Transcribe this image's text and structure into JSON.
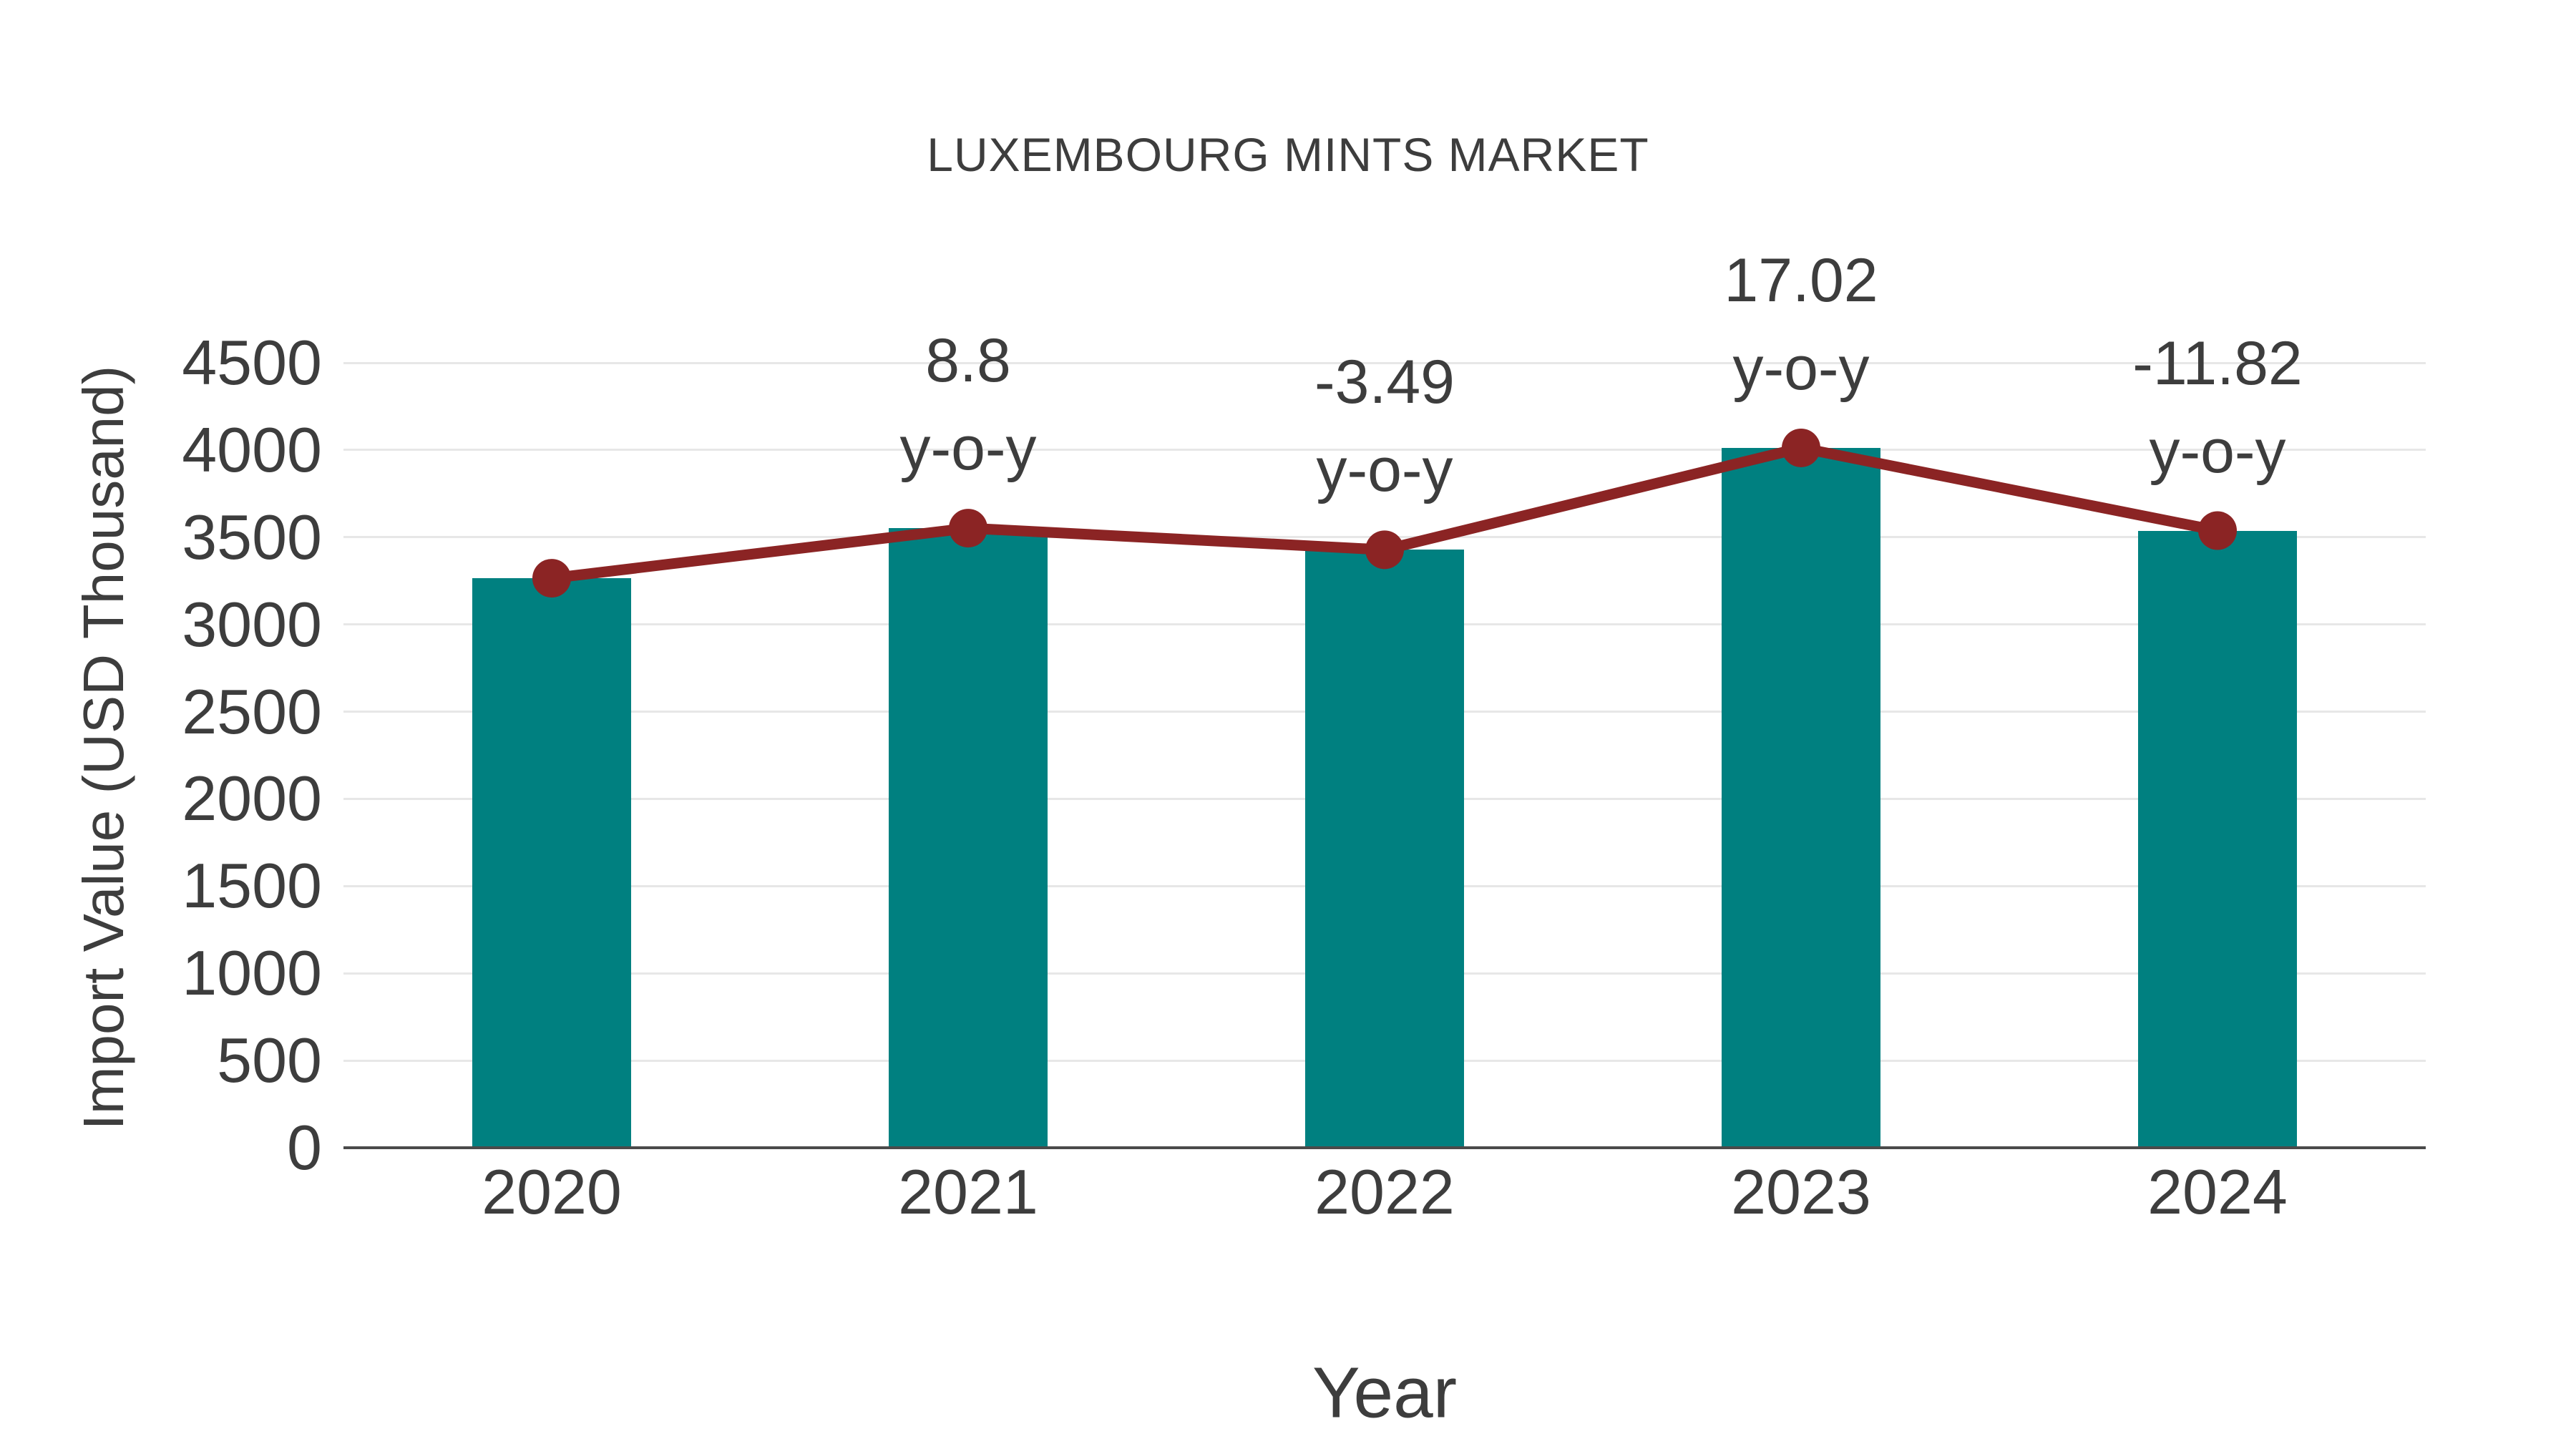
{
  "title": "LUXEMBOURG MINTS MARKET",
  "chart_data": {
    "type": "bar",
    "title": "LUXEMBOURG MINTS MARKET",
    "xlabel": "Year",
    "ylabel": "Import Value (USD Thousand)",
    "categories": [
      "2020",
      "2021",
      "2022",
      "2023",
      "2024"
    ],
    "series": [
      {
        "name": "import-value-bars",
        "type": "bar",
        "values": [
          3265,
          3552,
          3428,
          4012,
          3538
        ]
      },
      {
        "name": "import-value-line",
        "type": "line",
        "values": [
          3265,
          3552,
          3428,
          4012,
          3538
        ]
      }
    ],
    "annotations": [
      {
        "category": "2021",
        "line1": "8.8",
        "line2": "y-o-y"
      },
      {
        "category": "2022",
        "line1": "-3.49",
        "line2": "y-o-y"
      },
      {
        "category": "2023",
        "line1": "17.02",
        "line2": "y-o-y"
      },
      {
        "category": "2024",
        "line1": "-11.82",
        "line2": "y-o-y"
      }
    ],
    "ylim": [
      0,
      4500
    ],
    "yticks": [
      0,
      500,
      1000,
      1500,
      2000,
      2500,
      3000,
      3500,
      4000,
      4500
    ],
    "grid": true,
    "legend_position": "none"
  },
  "colors": {
    "bar": "#008080",
    "line": "#8B2424",
    "marker": "#8B2424",
    "text": "#3d3d3d",
    "grid": "#e7e7e7",
    "axis": "#4a4a4a",
    "background": "#ffffff"
  }
}
